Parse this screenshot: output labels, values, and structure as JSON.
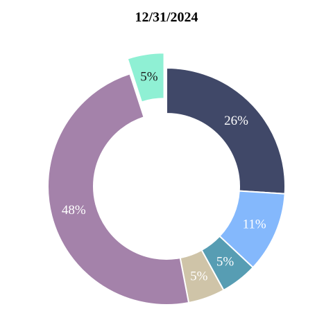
{
  "chart_data": {
    "type": "pie",
    "title": "12/31/2024",
    "donut": true,
    "start_angle_deg": 0,
    "direction": "clockwise",
    "slices": [
      {
        "value": 26,
        "label": "26%",
        "color": "#404868",
        "label_color": "#ffffff",
        "exploded": false
      },
      {
        "value": 11,
        "label": "11%",
        "color": "#84b8fc",
        "label_color": "#ffffff",
        "exploded": false
      },
      {
        "value": 5,
        "label": "5%",
        "color": "#579db3",
        "label_color": "#ffffff",
        "exploded": false
      },
      {
        "value": 5,
        "label": "5%",
        "color": "#cfc4a8",
        "label_color": "#ffffff",
        "exploded": false
      },
      {
        "value": 48,
        "label": "48%",
        "color": "#a482aa",
        "label_color": "#ffffff",
        "exploded": false
      },
      {
        "value": 5,
        "label": "5%",
        "color": "#8ff0d4",
        "label_color": "#1a1a1a",
        "exploded": true
      }
    ]
  }
}
